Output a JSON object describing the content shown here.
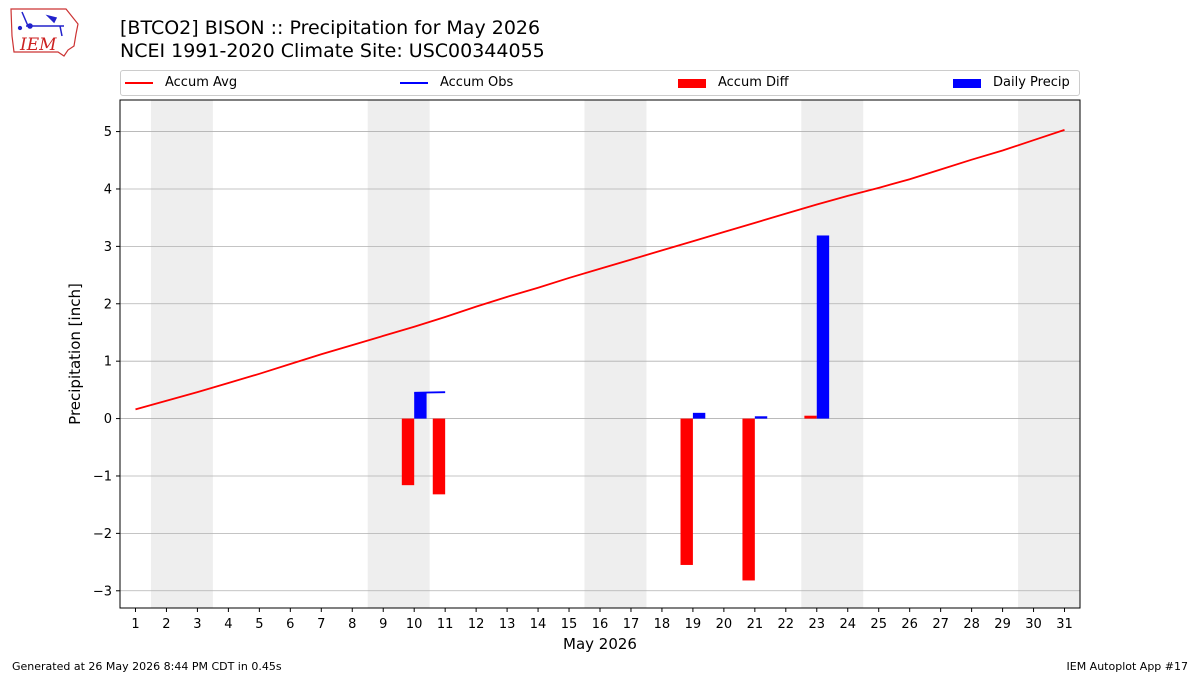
{
  "header": {
    "title_line1": "[BTCO2] BISON :: Precipitation for May 2026",
    "title_line2": "NCEI 1991-2020 Climate Site: USC00344055",
    "logo_text": "IEM"
  },
  "legend": {
    "accum_avg": "Accum Avg",
    "accum_obs": "Accum Obs",
    "accum_diff": "Accum Diff",
    "daily_precip": "Daily Precip"
  },
  "colors": {
    "avg": "#ff0000",
    "obs": "#0000ff",
    "diff": "#ff0000",
    "daily": "#0000ff",
    "weekend": "#eeeeee",
    "grid": "#b0b0b0"
  },
  "footer": {
    "generated": "Generated at 26 May 2026 8:44 PM CDT in 0.45s",
    "app": "IEM Autoplot App #17"
  },
  "chart_data": {
    "type": "bar",
    "title": "[BTCO2] BISON :: Precipitation for May 2026",
    "xlabel": "May 2026",
    "ylabel": "Precipitation [inch]",
    "xlim": [
      0.5,
      31.5
    ],
    "ylim": [
      -3.3,
      5.55
    ],
    "x_ticks": [
      1,
      2,
      3,
      4,
      5,
      6,
      7,
      8,
      9,
      10,
      11,
      12,
      13,
      14,
      15,
      16,
      17,
      18,
      19,
      20,
      21,
      22,
      23,
      24,
      25,
      26,
      27,
      28,
      29,
      30,
      31
    ],
    "y_ticks": [
      -3,
      -2,
      -1,
      0,
      1,
      2,
      3,
      4,
      5
    ],
    "y_tick_labels": [
      "−3",
      "−2",
      "−1",
      "0",
      "1",
      "2",
      "3",
      "4",
      "5"
    ],
    "grid": "horizontal",
    "weekend_spans": [
      [
        1.5,
        3.5
      ],
      [
        8.5,
        10.5
      ],
      [
        15.5,
        17.5
      ],
      [
        22.5,
        24.5
      ],
      [
        29.5,
        31.5
      ]
    ],
    "series": [
      {
        "name": "Accum Avg",
        "type": "line",
        "x": [
          1,
          2,
          3,
          4,
          5,
          6,
          7,
          8,
          9,
          10,
          11,
          12,
          13,
          14,
          15,
          16,
          17,
          18,
          19,
          20,
          21,
          22,
          23,
          24,
          25,
          26,
          27,
          28,
          29,
          30,
          31
        ],
        "values": [
          0.16,
          0.31,
          0.46,
          0.62,
          0.78,
          0.95,
          1.12,
          1.28,
          1.44,
          1.6,
          1.77,
          1.95,
          2.12,
          2.28,
          2.45,
          2.61,
          2.77,
          2.93,
          3.09,
          3.25,
          3.41,
          3.57,
          3.73,
          3.88,
          4.02,
          4.17,
          4.34,
          4.51,
          4.67,
          4.85,
          5.03
        ]
      },
      {
        "name": "Accum Obs",
        "type": "line",
        "x": [
          10,
          11
        ],
        "values": [
          0.45,
          0.46
        ]
      },
      {
        "name": "Accum Diff",
        "type": "bar",
        "x": [
          10,
          11,
          19,
          21,
          23
        ],
        "values": [
          -1.16,
          -1.32,
          -2.55,
          -2.82,
          0.05
        ]
      },
      {
        "name": "Daily Precip",
        "type": "bar",
        "x": [
          10,
          19,
          21,
          23
        ],
        "values": [
          0.45,
          0.1,
          0.04,
          3.19
        ]
      }
    ]
  }
}
